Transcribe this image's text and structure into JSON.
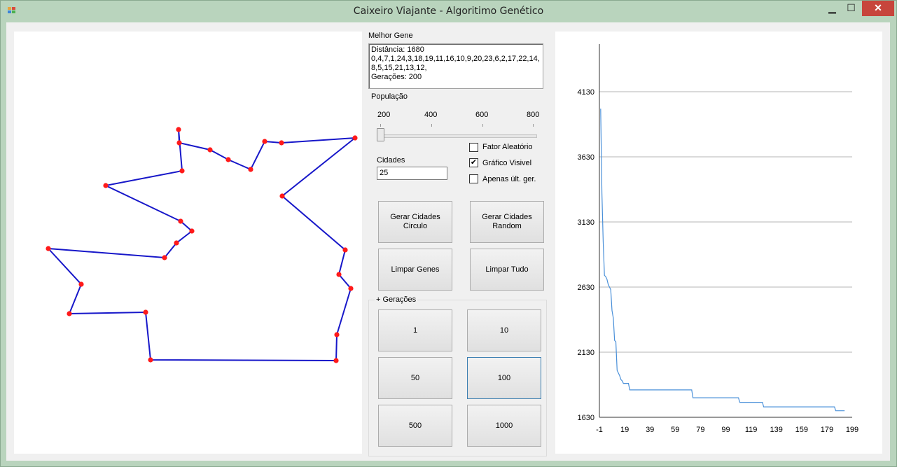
{
  "window": {
    "title": "Caixeiro Viajante - Algoritimo Genético",
    "minimize_glyph": "▁",
    "maximize_glyph": "☐",
    "close_glyph": "✕"
  },
  "best_gene": {
    "label": "Melhor Gene",
    "lines": [
      "Distância: 1680",
      "0,4,7,1,24,3,18,19,11,16,10,9,20,23,6,2,17,22,14,8,5,15,21,13,12,",
      "Gerações: 200"
    ]
  },
  "population": {
    "label": "População",
    "slider_ticks": [
      "200",
      "400",
      "600",
      "800"
    ],
    "value": 200
  },
  "cities": {
    "label": "Cidades",
    "value": "25"
  },
  "options": [
    {
      "label": "Fator Aleatório",
      "checked": false
    },
    {
      "label": "Gráfico Visivel",
      "checked": true
    },
    {
      "label": "Apenas últ. ger.",
      "checked": false
    }
  ],
  "buttons": {
    "gen_circle": "Gerar Cidades\nCirculo",
    "gen_random": "Gerar Cidades\nRandom",
    "clear_genes": "Limpar Genes",
    "clear_all": "Limpar Tudo"
  },
  "generations": {
    "label": "+ Gerações",
    "buttons": [
      "1",
      "10",
      "50",
      "100",
      "500",
      "1000"
    ],
    "focused": "100"
  },
  "tour": [
    [
      255,
      185
    ],
    [
      256,
      204
    ],
    [
      300,
      214
    ],
    [
      326,
      228
    ],
    [
      358,
      242
    ],
    [
      378,
      202
    ],
    [
      402,
      204
    ],
    [
      507,
      197
    ],
    [
      403,
      280
    ],
    [
      493,
      357
    ],
    [
      484,
      392
    ],
    [
      501,
      412
    ],
    [
      481,
      478
    ],
    [
      480,
      515
    ],
    [
      215,
      514
    ],
    [
      208,
      446
    ],
    [
      99,
      448
    ],
    [
      116,
      406
    ],
    [
      69,
      355
    ],
    [
      235,
      368
    ],
    [
      252,
      347
    ],
    [
      274,
      330
    ],
    [
      258,
      316
    ],
    [
      151,
      265
    ],
    [
      260,
      244
    ]
  ],
  "colors": {
    "route": "#1717c9",
    "city": "#ff1a1a",
    "chart_line": "#4a90d9",
    "grid": "#b4b4b4"
  },
  "chart_data": {
    "type": "line",
    "title": "",
    "xlabel": "",
    "ylabel": "",
    "x_ticks": [
      "-1",
      "19",
      "39",
      "59",
      "79",
      "99",
      "119",
      "139",
      "159",
      "179",
      "199"
    ],
    "y_ticks": [
      "1630",
      "2130",
      "2630",
      "3130",
      "3630",
      "4130"
    ],
    "xlim": [
      -1,
      199
    ],
    "ylim": [
      1630,
      4130
    ],
    "grid": true,
    "points": [
      [
        0,
        4000
      ],
      [
        1,
        3350
      ],
      [
        2,
        2980
      ],
      [
        3,
        2720
      ],
      [
        4,
        2710
      ],
      [
        5,
        2690
      ],
      [
        6,
        2650
      ],
      [
        7,
        2630
      ],
      [
        8,
        2610
      ],
      [
        9,
        2450
      ],
      [
        10,
        2390
      ],
      [
        11,
        2220
      ],
      [
        12,
        2210
      ],
      [
        13,
        1990
      ],
      [
        14,
        1970
      ],
      [
        15,
        1950
      ],
      [
        16,
        1920
      ],
      [
        17,
        1910
      ],
      [
        18,
        1890
      ],
      [
        19,
        1890
      ],
      [
        20,
        1890
      ],
      [
        21,
        1890
      ],
      [
        22,
        1890
      ],
      [
        23,
        1840
      ],
      [
        40,
        1840
      ],
      [
        60,
        1840
      ],
      [
        72,
        1840
      ],
      [
        73,
        1780
      ],
      [
        90,
        1780
      ],
      [
        109,
        1780
      ],
      [
        110,
        1745
      ],
      [
        128,
        1745
      ],
      [
        129,
        1710
      ],
      [
        150,
        1710
      ],
      [
        170,
        1710
      ],
      [
        185,
        1710
      ],
      [
        186,
        1680
      ],
      [
        193,
        1680
      ]
    ]
  }
}
